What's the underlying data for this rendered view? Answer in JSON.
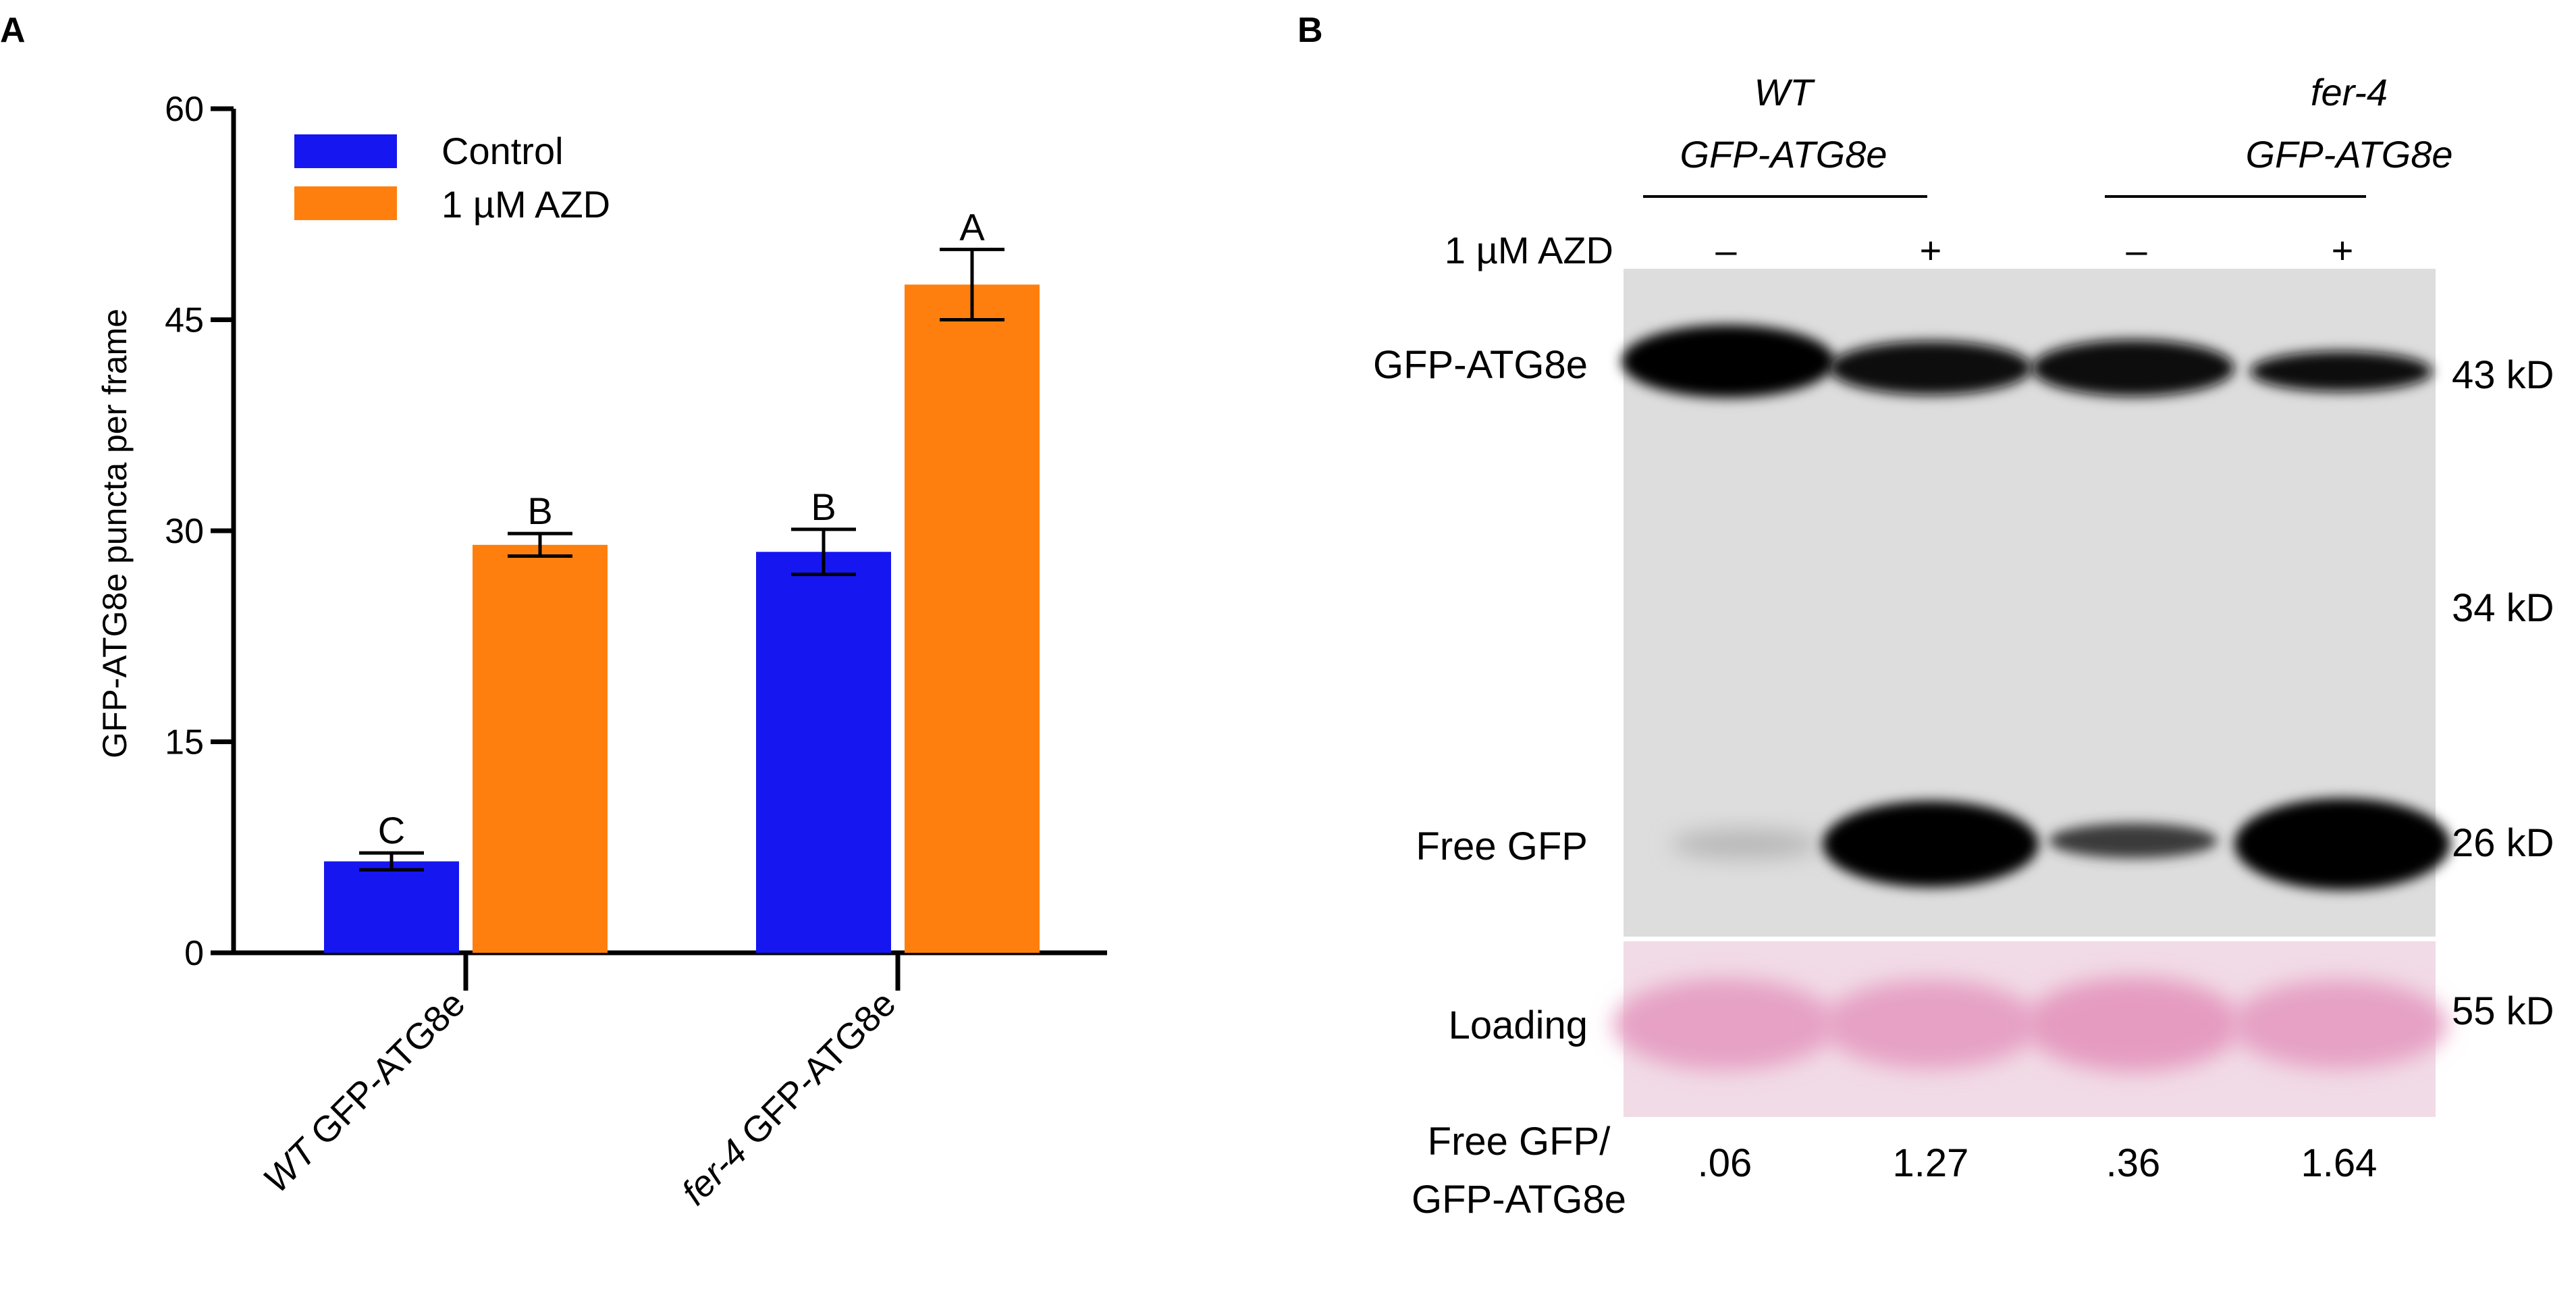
{
  "panels": {
    "a": {
      "letter": "A",
      "ylabel": "GFP-ATG8e puncta per frame",
      "legend": [
        "Control",
        "1 µM AZD"
      ],
      "groups": [
        {
          "italic": "WT",
          "rest": " GFP-ATG8e"
        },
        {
          "italic": "fer-4",
          "rest": " GFP-ATG8e"
        }
      ]
    },
    "b": {
      "letter": "B",
      "header_wt_1": "WT",
      "header_wt_2": "GFP-ATG8e",
      "header_fer_1": "fer-4",
      "header_fer_2": "GFP-ATG8e",
      "treatment_label": "1 µM AZD",
      "treatment_signs": [
        "–",
        "+",
        "–",
        "+"
      ],
      "band_gfp_atg8e": "GFP-ATG8e",
      "band_free_gfp": "Free GFP",
      "loading": "Loading",
      "markers": [
        "43 kD",
        "34 kD",
        "26 kD",
        "55 kD"
      ],
      "ratio_label_1": "Free GFP/",
      "ratio_label_2": "GFP-ATG8e",
      "ratios": [
        ".06",
        "1.27",
        ".36",
        "1.64"
      ]
    }
  },
  "colors": {
    "control": "#1616f0",
    "azd": "#ff7f0e",
    "blot_background": "#d8d8d8",
    "ponceau": "#e8a8c8"
  },
  "chart_data": {
    "type": "bar",
    "categories": [
      "WT GFP-ATG8e",
      "fer-4 GFP-ATG8e"
    ],
    "series": [
      {
        "name": "Control",
        "values": [
          6.5,
          28.5
        ],
        "errors": [
          0.6,
          1.6
        ],
        "letters": [
          "C",
          "B"
        ]
      },
      {
        "name": "1 µM AZD",
        "values": [
          29.0,
          47.5
        ],
        "errors": [
          0.8,
          2.5
        ],
        "letters": [
          "B",
          "A"
        ]
      }
    ],
    "ylabel": "GFP-ATG8e puncta per frame",
    "ylim": [
      0,
      60
    ],
    "yticks": [
      0,
      15,
      30,
      45,
      60
    ],
    "legend_position": "top-left",
    "grid": false
  }
}
